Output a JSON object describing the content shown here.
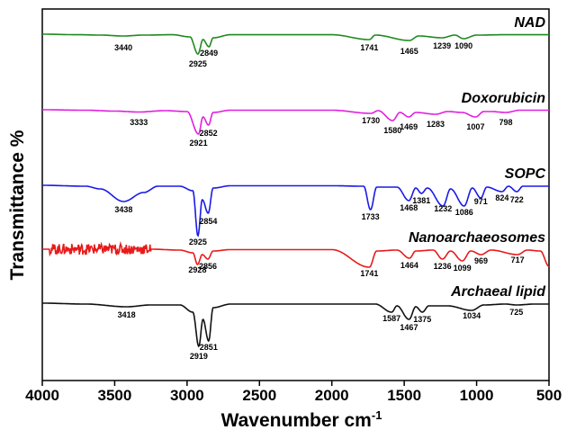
{
  "chart_data": {
    "type": "line",
    "xlabel": "Wavenumber cm",
    "xlabel_superscript": "-1",
    "ylabel": "Transmittance %",
    "xlim": [
      4000,
      500
    ],
    "x_reversed": true,
    "x_ticks": [
      4000,
      3500,
      3000,
      2500,
      2000,
      1500,
      1000,
      500
    ],
    "y_ticks_shown": false,
    "grid": false,
    "legend": "none",
    "series": [
      {
        "name": "NAD",
        "color": "#1f8a1f",
        "offset": 0.0,
        "profile": [
          [
            4000,
            0
          ],
          [
            3750,
            -0.6
          ],
          [
            3600,
            -1
          ],
          [
            3440,
            -2
          ],
          [
            3300,
            -1
          ],
          [
            3100,
            -0.6
          ],
          [
            2980,
            -3
          ],
          [
            2925,
            -22
          ],
          [
            2890,
            -6
          ],
          [
            2849,
            -14
          ],
          [
            2820,
            -4
          ],
          [
            2700,
            -0.6
          ],
          [
            2400,
            -0.6
          ],
          [
            2000,
            -0.6
          ],
          [
            1741,
            -6
          ],
          [
            1700,
            -1
          ],
          [
            1465,
            -7
          ],
          [
            1400,
            -2
          ],
          [
            1239,
            -4
          ],
          [
            1150,
            -1
          ],
          [
            1090,
            -5
          ],
          [
            1000,
            -1
          ],
          [
            800,
            -0.6
          ],
          [
            500,
            -0.6
          ]
        ],
        "peaks": [
          {
            "x": 3440,
            "text": "3440",
            "dy": 18
          },
          {
            "x": 2925,
            "text": "2925",
            "dy": 36
          },
          {
            "x": 2849,
            "text": "2849",
            "dy": 24
          },
          {
            "x": 1741,
            "text": "1741",
            "dy": 18
          },
          {
            "x": 1465,
            "text": "1465",
            "dy": 22
          },
          {
            "x": 1239,
            "text": "1239",
            "dy": 16
          },
          {
            "x": 1090,
            "text": "1090",
            "dy": 16
          }
        ]
      },
      {
        "name": "Doxorubicin",
        "color": "#e020e0",
        "offset": 84,
        "profile": [
          [
            4000,
            0
          ],
          [
            3700,
            -0.5
          ],
          [
            3500,
            -1.5
          ],
          [
            3333,
            -2.5
          ],
          [
            3150,
            -1
          ],
          [
            3000,
            -2
          ],
          [
            2921,
            -27
          ],
          [
            2890,
            -8
          ],
          [
            2852,
            -17
          ],
          [
            2820,
            -3
          ],
          [
            2700,
            -0.5
          ],
          [
            2000,
            -0.5
          ],
          [
            1730,
            -4
          ],
          [
            1680,
            -1
          ],
          [
            1580,
            -12
          ],
          [
            1530,
            -3
          ],
          [
            1469,
            -8
          ],
          [
            1420,
            -3
          ],
          [
            1283,
            -5
          ],
          [
            1200,
            -2
          ],
          [
            1100,
            -3
          ],
          [
            1007,
            -8
          ],
          [
            950,
            -2
          ],
          [
            900,
            -2
          ],
          [
            798,
            -3
          ],
          [
            700,
            -0.5
          ],
          [
            500,
            -0.5
          ]
        ],
        "peaks": [
          {
            "x": 3333,
            "text": "3333",
            "dy": 17
          },
          {
            "x": 2921,
            "text": "2921",
            "dy": 40
          },
          {
            "x": 2852,
            "text": "2852",
            "dy": 29
          },
          {
            "x": 1730,
            "text": "1730",
            "dy": 15
          },
          {
            "x": 1580,
            "text": "1580",
            "dy": 26
          },
          {
            "x": 1469,
            "text": "1469",
            "dy": 22
          },
          {
            "x": 1283,
            "text": "1283",
            "dy": 19
          },
          {
            "x": 1007,
            "text": "1007",
            "dy": 22
          },
          {
            "x": 798,
            "text": "798",
            "dy": 17
          }
        ]
      },
      {
        "name": "SOPC",
        "color": "#1a1ae8",
        "offset": 84,
        "profile": [
          [
            4000,
            0
          ],
          [
            3700,
            -1
          ],
          [
            3600,
            -4
          ],
          [
            3438,
            -18
          ],
          [
            3300,
            -8
          ],
          [
            3200,
            -1
          ],
          [
            3050,
            -1
          ],
          [
            2960,
            -6
          ],
          [
            2925,
            -56
          ],
          [
            2895,
            -16
          ],
          [
            2854,
            -31
          ],
          [
            2820,
            -3
          ],
          [
            2700,
            -0.5
          ],
          [
            2000,
            -0.5
          ],
          [
            1780,
            -1
          ],
          [
            1733,
            -27
          ],
          [
            1690,
            -2
          ],
          [
            1550,
            -2
          ],
          [
            1468,
            -17
          ],
          [
            1420,
            -3
          ],
          [
            1381,
            -9
          ],
          [
            1340,
            -3
          ],
          [
            1232,
            -23
          ],
          [
            1180,
            -4
          ],
          [
            1086,
            -23
          ],
          [
            1030,
            -3
          ],
          [
            971,
            -14
          ],
          [
            930,
            -2
          ],
          [
            824,
            -7
          ],
          [
            780,
            -1
          ],
          [
            722,
            -7
          ],
          [
            680,
            -1
          ],
          [
            500,
            -1
          ]
        ],
        "peaks": [
          {
            "x": 3438,
            "text": "3438",
            "dy": 30
          },
          {
            "x": 2925,
            "text": "2925",
            "dy": 66
          },
          {
            "x": 2854,
            "text": "2854",
            "dy": 43
          },
          {
            "x": 1733,
            "text": "1733",
            "dy": 38
          },
          {
            "x": 1468,
            "text": "1468",
            "dy": 28
          },
          {
            "x": 1381,
            "text": "1381",
            "dy": 20
          },
          {
            "x": 1232,
            "text": "1232",
            "dy": 29
          },
          {
            "x": 1086,
            "text": "1086",
            "dy": 33
          },
          {
            "x": 971,
            "text": "971",
            "dy": 21
          },
          {
            "x": 824,
            "text": "824",
            "dy": 17
          },
          {
            "x": 722,
            "text": "722",
            "dy": 19
          }
        ]
      },
      {
        "name": "Nanoarchaeosomes",
        "color": "#e81a1a",
        "offset": 71,
        "profile": [
          [
            4000,
            0
          ],
          [
            3250,
            0
          ],
          [
            3050,
            -1
          ],
          [
            2960,
            -4
          ],
          [
            2928,
            -17
          ],
          [
            2895,
            -6
          ],
          [
            2856,
            -11
          ],
          [
            2820,
            -2
          ],
          [
            2700,
            -0.5
          ],
          [
            2000,
            -0.5
          ],
          [
            1741,
            -20
          ],
          [
            1690,
            -2
          ],
          [
            1550,
            -1
          ],
          [
            1464,
            -10
          ],
          [
            1420,
            -2
          ],
          [
            1300,
            -1
          ],
          [
            1236,
            -11
          ],
          [
            1180,
            -2
          ],
          [
            1099,
            -13
          ],
          [
            1040,
            -2
          ],
          [
            969,
            -6
          ],
          [
            900,
            -1
          ],
          [
            717,
            -6
          ],
          [
            650,
            -1
          ],
          [
            560,
            -2
          ],
          [
            500,
            -19
          ]
        ],
        "noise": {
          "from": 3950,
          "to": 3250,
          "amplitude": 6
        },
        "peaks": [
          {
            "x": 2928,
            "text": "2928",
            "dy": 26
          },
          {
            "x": 2856,
            "text": "2856",
            "dy": 22
          },
          {
            "x": 1741,
            "text": "1741",
            "dy": 30
          },
          {
            "x": 1464,
            "text": "1464",
            "dy": 21
          },
          {
            "x": 1236,
            "text": "1236",
            "dy": 22
          },
          {
            "x": 1099,
            "text": "1099",
            "dy": 24
          },
          {
            "x": 969,
            "text": "969",
            "dy": 16
          },
          {
            "x": 717,
            "text": "717",
            "dy": 15
          }
        ]
      },
      {
        "name": "Archaeal lipid",
        "color": "#111111",
        "offset": 60,
        "profile": [
          [
            4000,
            0
          ],
          [
            3700,
            -1
          ],
          [
            3418,
            -4
          ],
          [
            3250,
            -2
          ],
          [
            3050,
            -2
          ],
          [
            2960,
            -10
          ],
          [
            2919,
            -48
          ],
          [
            2890,
            -18
          ],
          [
            2851,
            -42
          ],
          [
            2820,
            -5
          ],
          [
            2700,
            -1
          ],
          [
            2000,
            -1
          ],
          [
            1700,
            -1
          ],
          [
            1587,
            -10
          ],
          [
            1550,
            -3
          ],
          [
            1467,
            -18
          ],
          [
            1420,
            -4
          ],
          [
            1375,
            -10
          ],
          [
            1330,
            -3
          ],
          [
            1200,
            -3
          ],
          [
            1034,
            -8
          ],
          [
            950,
            -2
          ],
          [
            800,
            -1
          ],
          [
            725,
            -2
          ],
          [
            600,
            -1
          ],
          [
            500,
            -1
          ]
        ],
        "peaks": [
          {
            "x": 3418,
            "text": "3418",
            "dy": 16
          },
          {
            "x": 2919,
            "text": "2919",
            "dy": 62
          },
          {
            "x": 2851,
            "text": "2851",
            "dy": 52
          },
          {
            "x": 1587,
            "text": "1587",
            "dy": 20
          },
          {
            "x": 1467,
            "text": "1467",
            "dy": 30
          },
          {
            "x": 1375,
            "text": "1375",
            "dy": 21
          },
          {
            "x": 1034,
            "text": "1034",
            "dy": 17
          },
          {
            "x": 725,
            "text": "725",
            "dy": 13
          }
        ]
      }
    ]
  }
}
